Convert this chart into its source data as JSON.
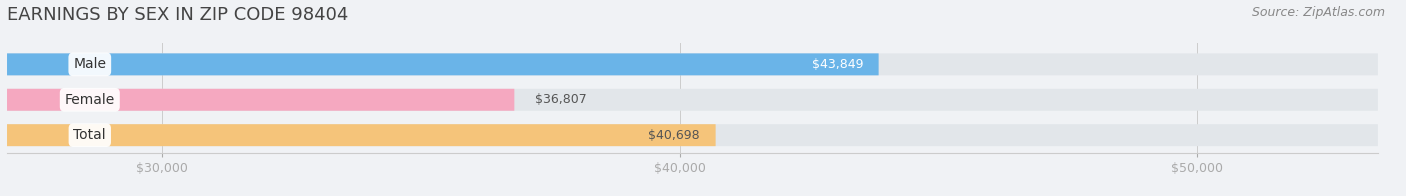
{
  "title": "EARNINGS BY SEX IN ZIP CODE 98404",
  "source": "Source: ZipAtlas.com",
  "categories": [
    "Male",
    "Female",
    "Total"
  ],
  "values": [
    43849,
    36807,
    40698
  ],
  "bar_colors": [
    "#6ab4e8",
    "#f5a8c0",
    "#f5c47a"
  ],
  "bar_bg_color": "#e2e6ea",
  "xlim_min": 27000,
  "xlim_max": 53500,
  "xticks": [
    30000,
    40000,
    50000
  ],
  "xtick_labels": [
    "$30,000",
    "$40,000",
    "$50,000"
  ],
  "title_fontsize": 13,
  "source_fontsize": 9,
  "bar_label_fontsize": 9,
  "category_fontsize": 10,
  "value_labels": [
    "$43,849",
    "$36,807",
    "$40,698"
  ],
  "value_label_colors": [
    "#ffffff",
    "#555555",
    "#555555"
  ],
  "background_color": "#f0f2f5"
}
